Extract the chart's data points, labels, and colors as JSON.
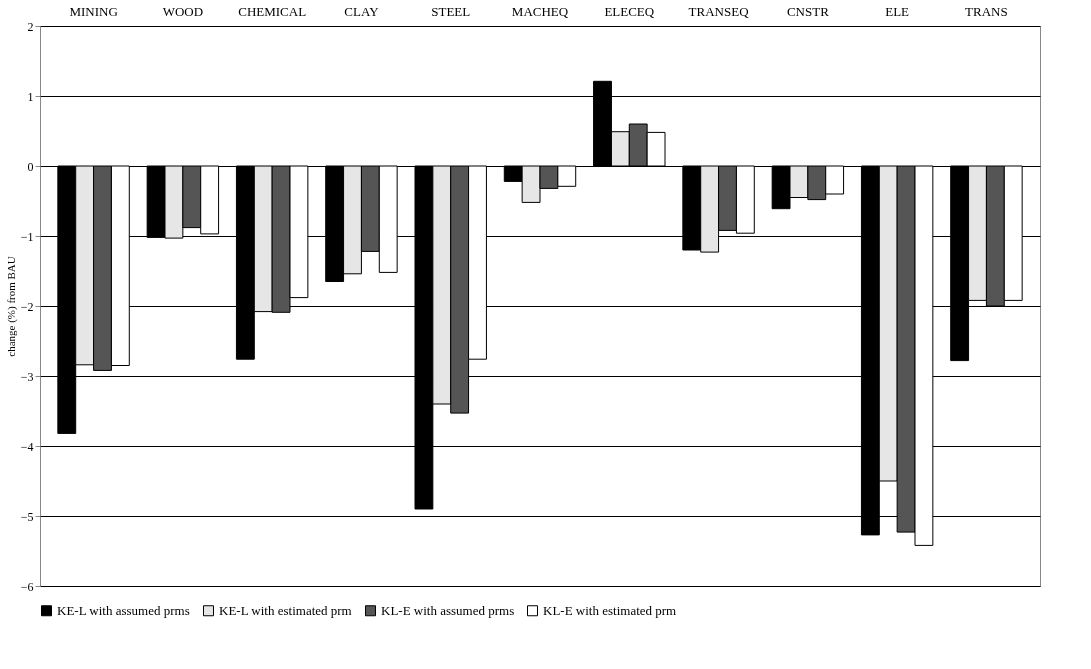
{
  "chart_data": {
    "type": "bar",
    "ylabel": "change (%) from BAU",
    "categories": [
      "MINING",
      "WOOD",
      "CHEMICAL",
      "CLAY",
      "STEEL",
      "MACHEQ",
      "ELECEQ",
      "TRANSEQ",
      "CNSTR",
      "ELE",
      "TRANS"
    ],
    "series": [
      {
        "name": "KE-L with assumed prms",
        "color": "#000000",
        "values": [
          -3.82,
          -1.02,
          -2.76,
          -1.65,
          -4.9,
          -0.22,
          1.21,
          -1.2,
          -0.61,
          -5.27,
          -2.78
        ]
      },
      {
        "name": "KE-L with estimated prm",
        "color": "#e6e6e6",
        "values": [
          -2.84,
          -1.03,
          -2.08,
          -1.54,
          -3.4,
          -0.52,
          0.49,
          -1.23,
          -0.45,
          -4.5,
          -1.92
        ]
      },
      {
        "name": "KL-E with assumed prms",
        "color": "#555555",
        "values": [
          -2.92,
          -0.88,
          -2.09,
          -1.22,
          -3.53,
          -0.32,
          0.6,
          -0.92,
          -0.48,
          -5.23,
          -2.0
        ]
      },
      {
        "name": "KL-E with estimated prm",
        "color": "#ffffff",
        "values": [
          -2.85,
          -0.97,
          -1.88,
          -1.52,
          -2.76,
          -0.29,
          0.48,
          -0.96,
          -0.4,
          -5.42,
          -1.92
        ]
      }
    ],
    "ylim": [
      -6,
      2
    ],
    "yticks": [
      -6,
      -5,
      -4,
      -3,
      -2,
      -1,
      0,
      1,
      2
    ],
    "grid": "y",
    "legend": "bottom"
  }
}
